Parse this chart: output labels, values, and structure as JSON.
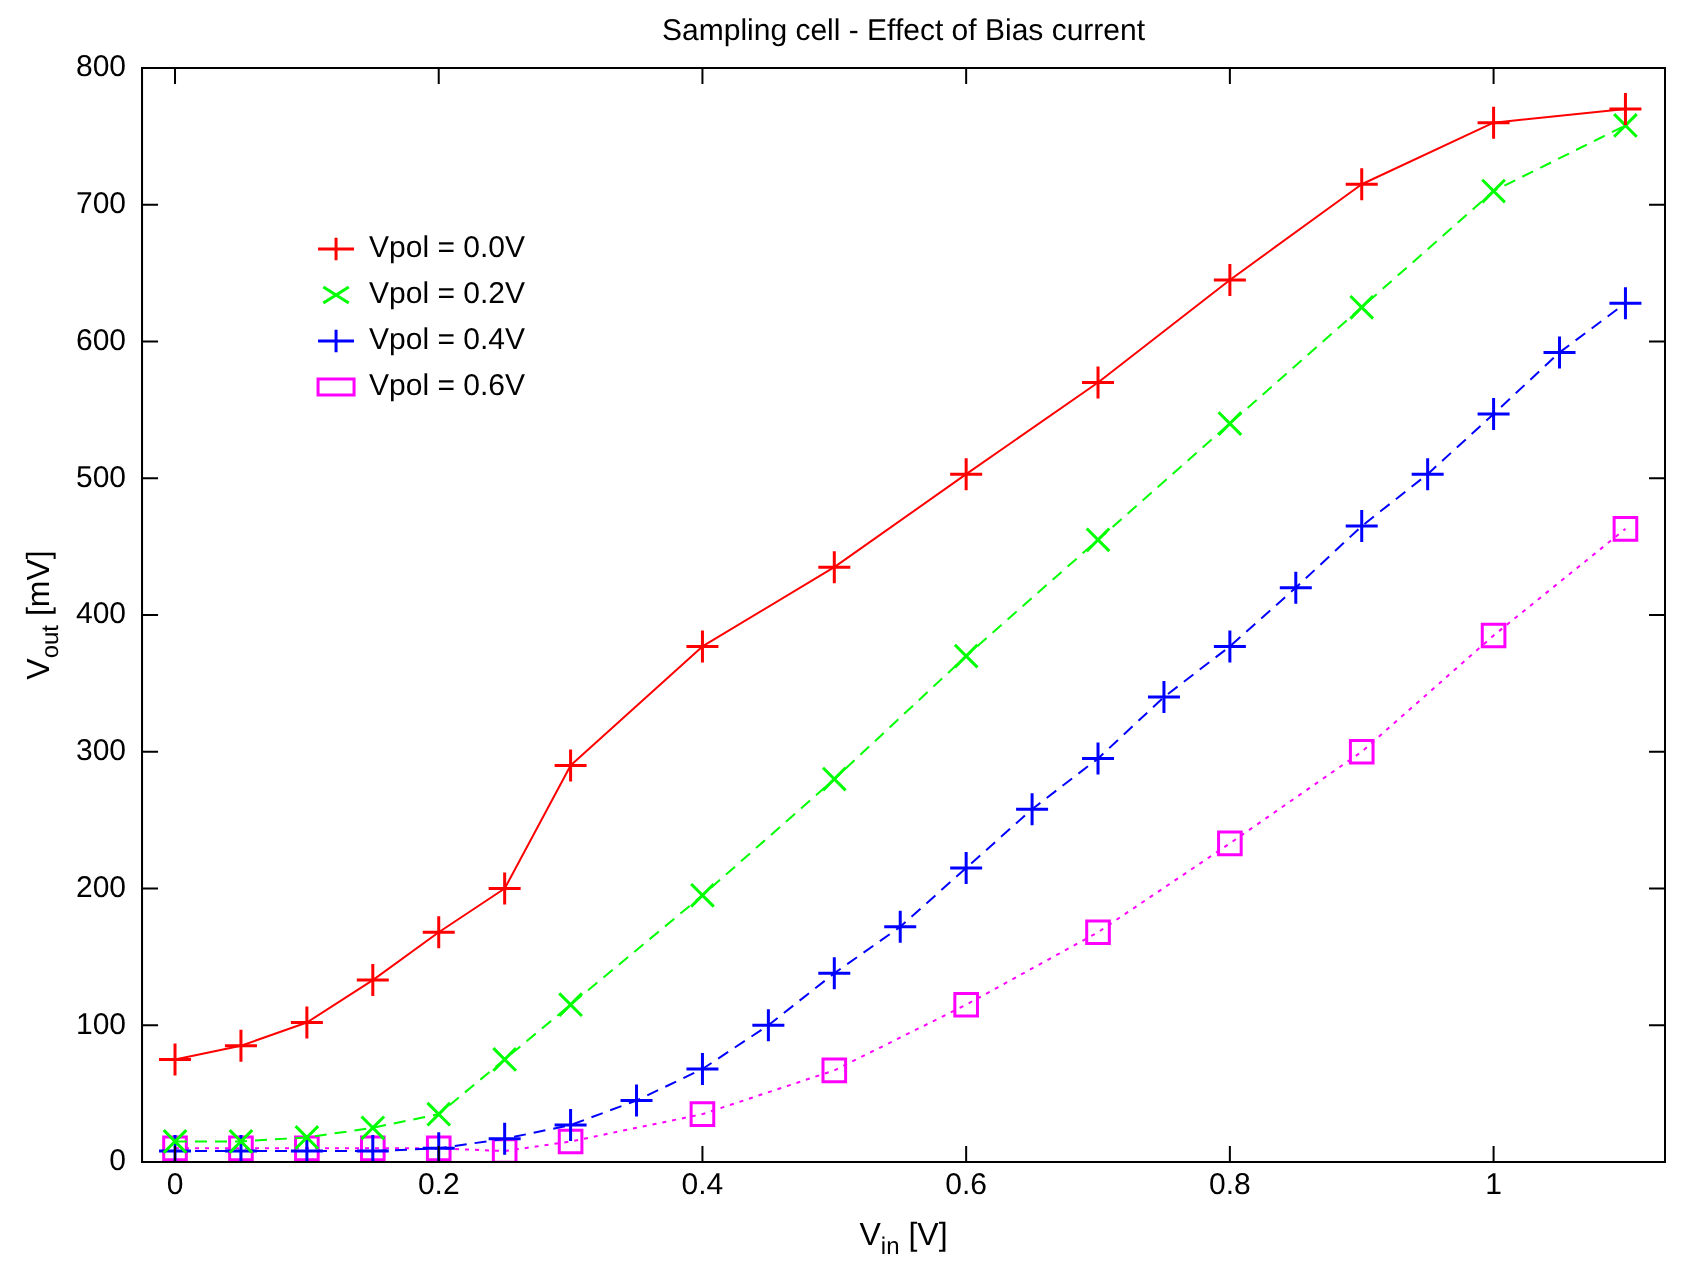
{
  "chart_data": {
    "type": "line",
    "title": "Sampling cell - Effect of Bias current",
    "xlabel": "V$_{in}$ [V]",
    "ylabel": "V$_{out}$ [mV]",
    "xlim": [
      -0.025,
      1.13
    ],
    "xticks": [
      0,
      0.2,
      0.4,
      0.6,
      0.8,
      1
    ],
    "ylim": [
      0,
      800
    ],
    "yticks": [
      0,
      100,
      200,
      300,
      400,
      500,
      600,
      700,
      800
    ],
    "grid": false,
    "legend": "top left",
    "series": [
      {
        "name": "Vpol = 0.0V",
        "color": "#ff0000",
        "marker": "cross",
        "line_style": "solid",
        "x": [
          0,
          0.05,
          0.1,
          0.15,
          0.2,
          0.25,
          0.3,
          0.4,
          0.5,
          0.6,
          0.7,
          0.8,
          0.9,
          1.0,
          1.1
        ],
        "values": [
          75,
          85,
          102,
          133,
          168,
          200,
          290,
          377,
          435,
          503,
          570,
          645,
          715,
          760,
          770
        ]
      },
      {
        "name": "Vpol = 0.2V",
        "color": "#00ff00",
        "marker": "x",
        "line_style": "dashed",
        "x": [
          0,
          0.05,
          0.1,
          0.15,
          0.2,
          0.25,
          0.3,
          0.4,
          0.5,
          0.6,
          0.7,
          0.8,
          0.9,
          1.0,
          1.1
        ],
        "values": [
          15,
          15,
          18,
          25,
          35,
          75,
          115,
          195,
          280,
          370,
          455,
          540,
          625,
          710,
          758
        ]
      },
      {
        "name": "Vpol = 0.4V",
        "color": "#0000ff",
        "marker": "cross",
        "line_style": "dashed",
        "x": [
          0,
          0.05,
          0.1,
          0.15,
          0.2,
          0.25,
          0.3,
          0.35,
          0.4,
          0.45,
          0.5,
          0.55,
          0.6,
          0.65,
          0.7,
          0.75,
          0.8,
          0.85,
          0.9,
          0.95,
          1.0,
          1.05,
          1.1
        ],
        "values": [
          8,
          8,
          8,
          8,
          10,
          17,
          27,
          45,
          68,
          100,
          138,
          172,
          215,
          258,
          295,
          340,
          377,
          420,
          465,
          503,
          547,
          592,
          628
        ]
      },
      {
        "name": "Vpol = 0.6V",
        "color": "#ff00ff",
        "marker": "square",
        "line_style": "dotted",
        "x": [
          0,
          0.05,
          0.1,
          0.15,
          0.2,
          0.25,
          0.3,
          0.4,
          0.5,
          0.6,
          0.7,
          0.8,
          0.9,
          1.0,
          1.1
        ],
        "values": [
          10,
          10,
          10,
          10,
          10,
          8,
          15,
          35,
          67,
          115,
          168,
          233,
          300,
          385,
          463
        ]
      }
    ]
  }
}
